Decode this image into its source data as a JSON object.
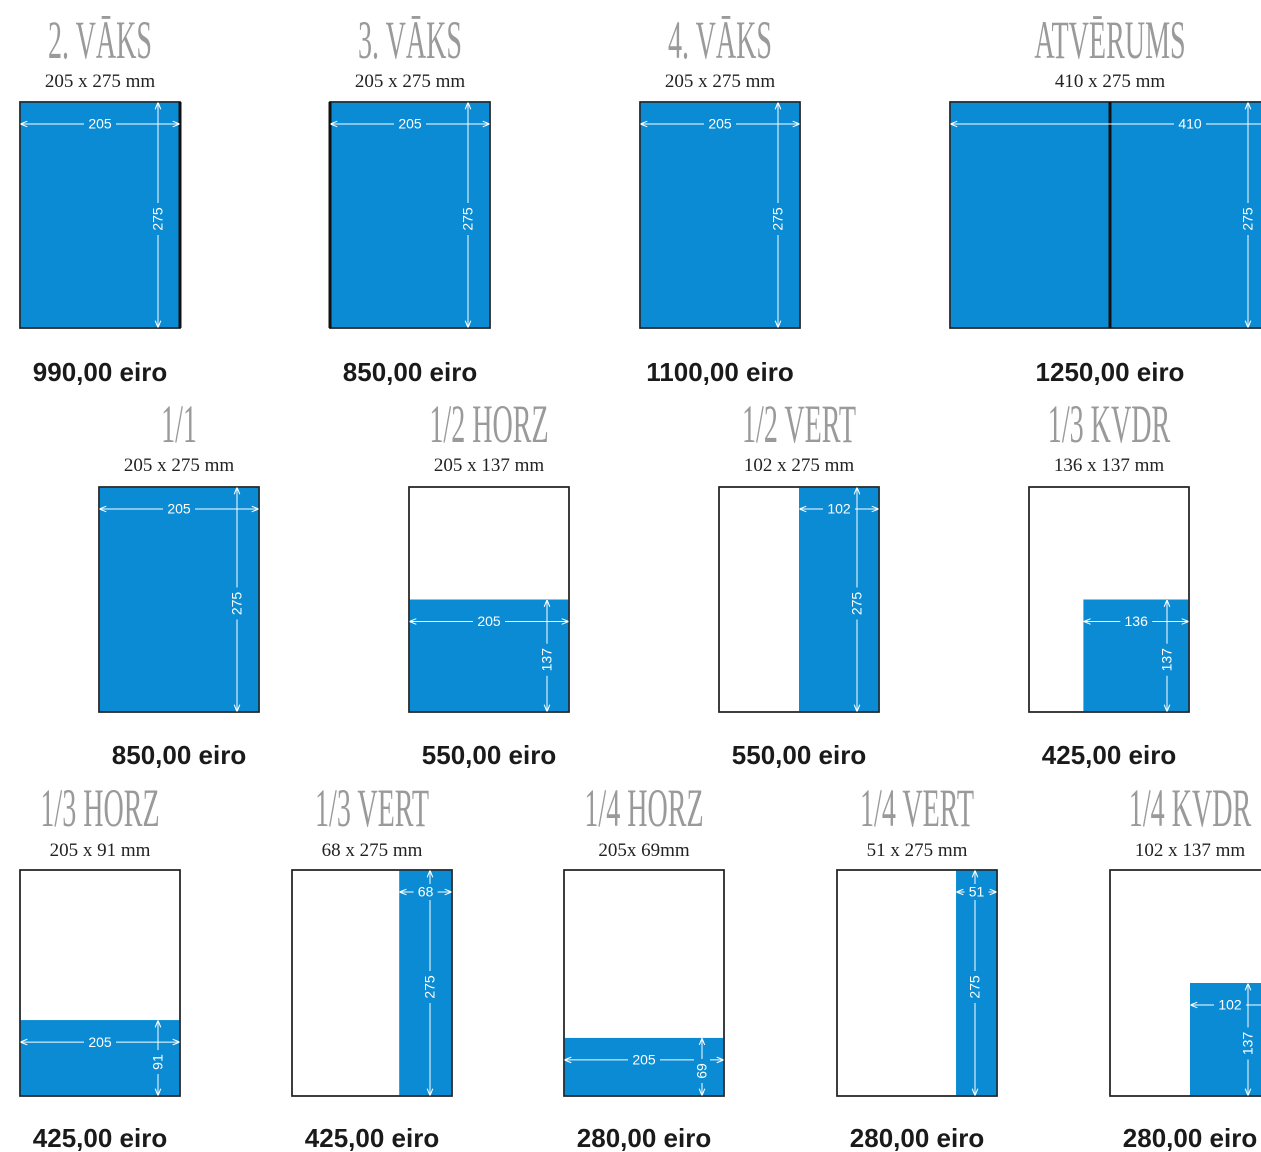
{
  "rows": [
    {
      "items": [
        {
          "title": "2. VĀKS",
          "size": "205 x 275 mm",
          "width_label": "205",
          "height_label": "275",
          "price": "990,00 eiro"
        },
        {
          "title": "3. VĀKS",
          "size": "205 x 275 mm",
          "width_label": "205",
          "height_label": "275",
          "price": "850,00 eiro"
        },
        {
          "title": "4. VĀKS",
          "size": "205 x 275 mm",
          "width_label": "205",
          "height_label": "275",
          "price": "1100,00 eiro"
        },
        {
          "title": "ATVĒRUMS",
          "size": "410 x 275 mm",
          "width_label": "410",
          "height_label": "275",
          "price": "1250,00 eiro"
        }
      ]
    },
    {
      "items": [
        {
          "title": "1/1",
          "size": "205 x 275 mm",
          "width_label": "205",
          "height_label": "275",
          "price": "850,00 eiro"
        },
        {
          "title": "1/2 HORZ",
          "size": "205 x 137 mm",
          "width_label": "205",
          "height_label": "137",
          "price": "550,00 eiro"
        },
        {
          "title": "1/2 VERT",
          "size": "102 x 275 mm",
          "width_label": "102",
          "height_label": "275",
          "price": "550,00 eiro"
        },
        {
          "title": "1/3 KVDR",
          "size": "136 x 137 mm",
          "width_label": "136",
          "height_label": "137",
          "price": "425,00 eiro"
        }
      ]
    },
    {
      "items": [
        {
          "title": "1/3 HORZ",
          "size": "205 x 91 mm",
          "width_label": "205",
          "height_label": "91",
          "price": "425,00 eiro"
        },
        {
          "title": "1/3 VERT",
          "size": "68 x 275 mm",
          "width_label": "68",
          "height_label": "275",
          "price": "425,00 eiro"
        },
        {
          "title": "1/4 HORZ",
          "size": "205x 69mm",
          "width_label": "205",
          "height_label": "69",
          "price": "280,00 eiro"
        },
        {
          "title": "1/4 VERT",
          "size": "51 x 275 mm",
          "width_label": "51",
          "height_label": "275",
          "price": "280,00 eiro"
        },
        {
          "title": "1/4 KVDR",
          "size": "102 x 137 mm",
          "width_label": "102",
          "height_label": "137",
          "price": "280,00 eiro"
        }
      ]
    }
  ]
}
